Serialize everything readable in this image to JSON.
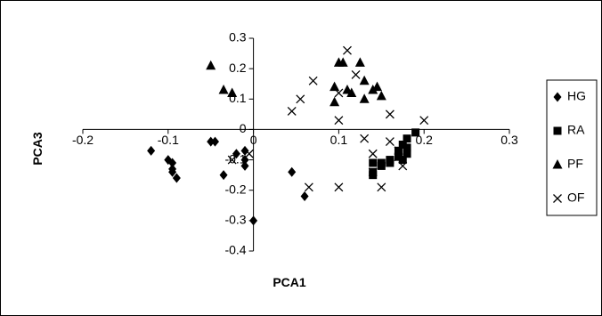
{
  "chart_data": {
    "type": "scatter",
    "xlabel": "PCA1",
    "ylabel": "PCA3",
    "xlim": [
      -0.2,
      0.3
    ],
    "ylim": [
      -0.4,
      0.3
    ],
    "x_ticks": [
      "-0.2",
      "-0.1",
      "0",
      "0.1",
      "0.2",
      "0.3"
    ],
    "y_ticks": [
      "0.3",
      "0.2",
      "0.1",
      "0",
      "-0.1",
      "-0.2",
      "-0.3",
      "-0.4"
    ],
    "grid": false,
    "legend_position": "right",
    "series": [
      {
        "name": "HG",
        "marker": "diamond",
        "points": [
          [
            -0.12,
            -0.07
          ],
          [
            -0.1,
            -0.1
          ],
          [
            -0.095,
            -0.11
          ],
          [
            -0.095,
            -0.13
          ],
          [
            -0.095,
            -0.14
          ],
          [
            -0.09,
            -0.16
          ],
          [
            -0.05,
            -0.04
          ],
          [
            -0.045,
            -0.04
          ],
          [
            -0.035,
            -0.15
          ],
          [
            -0.02,
            -0.08
          ],
          [
            -0.01,
            -0.07
          ],
          [
            -0.01,
            -0.1
          ],
          [
            -0.01,
            -0.12
          ],
          [
            0.0,
            -0.3
          ],
          [
            0.045,
            -0.14
          ],
          [
            0.06,
            -0.22
          ]
        ]
      },
      {
        "name": "RA",
        "marker": "square",
        "points": [
          [
            0.14,
            -0.11
          ],
          [
            0.14,
            -0.15
          ],
          [
            0.14,
            -0.14
          ],
          [
            0.15,
            -0.11
          ],
          [
            0.15,
            -0.12
          ],
          [
            0.16,
            -0.1
          ],
          [
            0.16,
            -0.11
          ],
          [
            0.17,
            -0.09
          ],
          [
            0.17,
            -0.07
          ],
          [
            0.175,
            -0.1
          ],
          [
            0.18,
            -0.08
          ],
          [
            0.18,
            -0.06
          ],
          [
            0.18,
            -0.03
          ],
          [
            0.19,
            -0.01
          ],
          [
            0.175,
            -0.05
          ]
        ]
      },
      {
        "name": "PF",
        "marker": "triangle",
        "points": [
          [
            -0.05,
            0.21
          ],
          [
            -0.035,
            0.13
          ],
          [
            -0.025,
            0.12
          ],
          [
            0.095,
            0.14
          ],
          [
            0.095,
            0.09
          ],
          [
            0.1,
            0.22
          ],
          [
            0.105,
            0.22
          ],
          [
            0.11,
            0.13
          ],
          [
            0.115,
            0.12
          ],
          [
            0.125,
            0.22
          ],
          [
            0.13,
            0.16
          ],
          [
            0.13,
            0.1
          ],
          [
            0.14,
            0.13
          ],
          [
            0.145,
            0.14
          ],
          [
            0.15,
            0.11
          ]
        ]
      },
      {
        "name": "OF",
        "marker": "cross",
        "points": [
          [
            -0.005,
            -0.08
          ],
          [
            -0.025,
            -0.1
          ],
          [
            0.045,
            0.06
          ],
          [
            0.055,
            0.1
          ],
          [
            0.065,
            -0.19
          ],
          [
            0.07,
            0.16
          ],
          [
            0.1,
            -0.19
          ],
          [
            0.1,
            0.03
          ],
          [
            0.1,
            0.12
          ],
          [
            0.11,
            0.26
          ],
          [
            0.12,
            0.18
          ],
          [
            0.13,
            -0.03
          ],
          [
            0.14,
            -0.08
          ],
          [
            0.14,
            -0.14
          ],
          [
            0.15,
            -0.19
          ],
          [
            0.16,
            0.05
          ],
          [
            0.16,
            -0.04
          ],
          [
            0.17,
            -0.07
          ],
          [
            0.175,
            -0.12
          ],
          [
            0.2,
            0.03
          ],
          [
            0.17,
            -0.09
          ]
        ]
      }
    ]
  }
}
